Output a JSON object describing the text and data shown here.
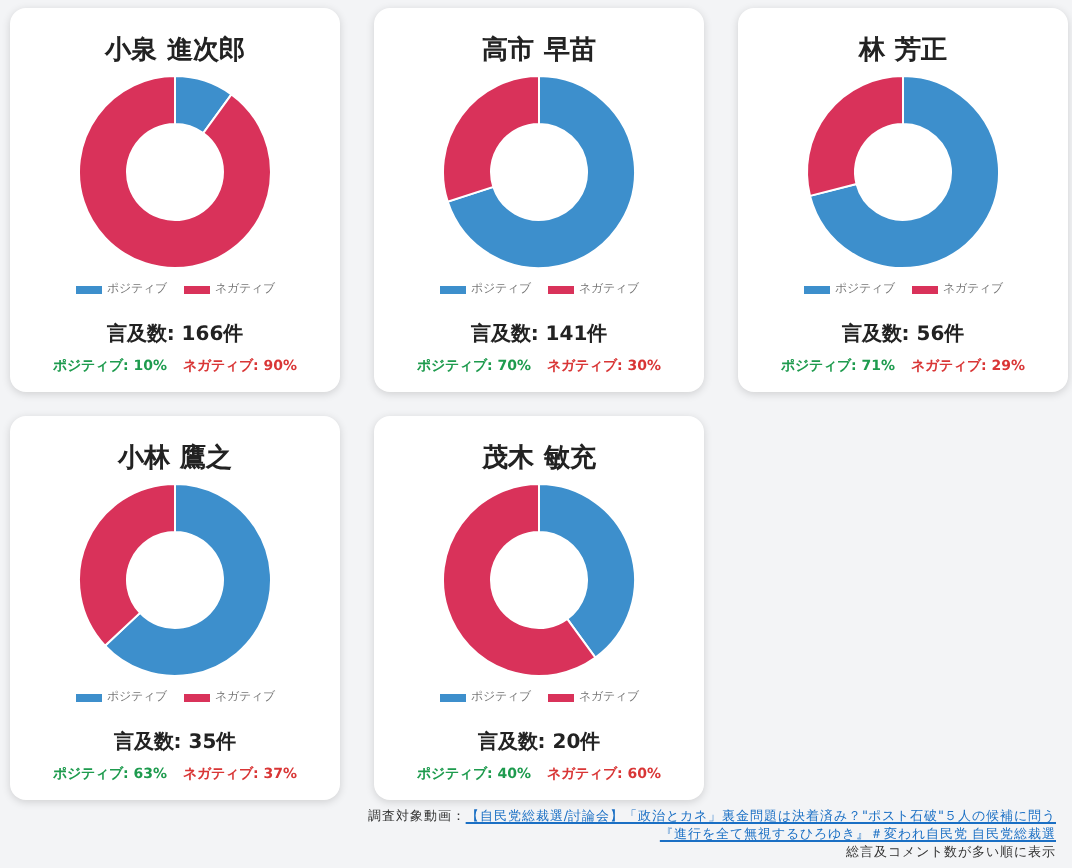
{
  "chart_data": [
    {
      "type": "donut",
      "title": "小泉 進次郎",
      "subtitle": "言及数: 166件",
      "categories": [
        "ポジティブ",
        "ネガティブ"
      ],
      "values": [
        10,
        90
      ],
      "colors": [
        "#3d8fcc",
        "#d9325a"
      ],
      "legend": "bottom",
      "annotations": [
        "ポジティブ: 10%",
        "ネガティブ: 90%"
      ]
    },
    {
      "type": "donut",
      "title": "高市 早苗",
      "subtitle": "言及数: 141件",
      "categories": [
        "ポジティブ",
        "ネガティブ"
      ],
      "values": [
        70,
        30
      ],
      "colors": [
        "#3d8fcc",
        "#d9325a"
      ],
      "legend": "bottom",
      "annotations": [
        "ポジティブ: 70%",
        "ネガティブ: 30%"
      ]
    },
    {
      "type": "donut",
      "title": "林 芳正",
      "subtitle": "言及数: 56件",
      "categories": [
        "ポジティブ",
        "ネガティブ"
      ],
      "values": [
        71,
        29
      ],
      "colors": [
        "#3d8fcc",
        "#d9325a"
      ],
      "legend": "bottom",
      "annotations": [
        "ポジティブ: 71%",
        "ネガティブ: 29%"
      ]
    },
    {
      "type": "donut",
      "title": "小林 鷹之",
      "subtitle": "言及数: 35件",
      "categories": [
        "ポジティブ",
        "ネガティブ"
      ],
      "values": [
        63,
        37
      ],
      "colors": [
        "#3d8fcc",
        "#d9325a"
      ],
      "legend": "bottom",
      "annotations": [
        "ポジティブ: 63%",
        "ネガティブ: 37%"
      ]
    },
    {
      "type": "donut",
      "title": "茂木 敏充",
      "subtitle": "言及数: 20件",
      "categories": [
        "ポジティブ",
        "ネガティブ"
      ],
      "values": [
        40,
        60
      ],
      "colors": [
        "#3d8fcc",
        "#d9325a"
      ],
      "legend": "bottom",
      "annotations": [
        "ポジティブ: 40%",
        "ネガティブ: 60%",
        "調査対象動画：",
        "【自民党総裁選/討論会】「政治とカネ」裏金問題は決着済み？\"ポスト石破\"５人の候補に問う",
        "『進行を全て無視するひろゆき』＃変われ自民党 自民党総裁選",
        "総言及コメント数が多い順に表示"
      ]
    }
  ]
}
